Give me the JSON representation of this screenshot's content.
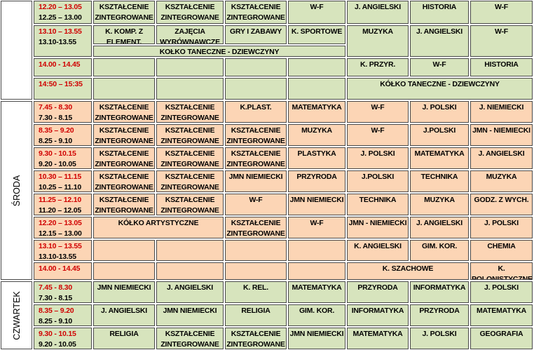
{
  "sections": [
    {
      "rows": [
        {
          "time": {
            "start": "12.20 – 13.05",
            "alt": "12.25 – 13.00"
          },
          "cells": [
            "KSZTAŁCENIE ZINTEGROWANE",
            "KSZTAŁCENIE ZINTEGROWANE",
            "KSZTAŁCENIE ZINTEGROWANE",
            "W-F",
            "J. ANGIELSKI",
            "HISTORIA",
            "W-F"
          ]
        },
        {
          "time": {
            "start": "13.10 – 13.55",
            "alt": "13.10-13.55"
          },
          "cells": [
            "K. KOMP. Z ELEMENT. PROG.",
            "ZAJĘCIA WYRÓWNAWCZE",
            "GRY I ZABAWY",
            "K. SPORTOWE",
            "MUZYKA",
            "J. ANGIELSKI",
            "W-F",
            "KOŁKO TANECZNE - DZIEWCZYNY"
          ]
        },
        {
          "time": {
            "start": "14.00 - 14.45"
          },
          "cells": [
            "K. PRZYR.",
            "W-F",
            "HISTORIA"
          ]
        },
        {
          "time": {
            "start": "14:50 – 15:35"
          },
          "cells": [
            "KÓŁKO TANECZNE - DZIEWCZYNY"
          ]
        }
      ]
    },
    {
      "day": "ŚRODA",
      "rows": [
        {
          "time": {
            "start": "7.45 - 8.30",
            "alt": "7.30 - 8.15"
          },
          "cells": [
            "KSZTAŁCENIE ZINTEGROWANE",
            "KSZTAŁCENIE ZINTEGROWANE",
            "K.PLAST.",
            "MATEMATYKA",
            "W-F",
            "J. POLSKI",
            "J. NIEMIECKI"
          ]
        },
        {
          "time": {
            "start": "8.35 – 9.20",
            "alt": "8.25 - 9.10"
          },
          "cells": [
            "KSZTAŁCENIE ZINTEGROWANE",
            "KSZTAŁCENIE ZINTEGROWANE",
            "KSZTAŁCENIE ZINTEGROWANE",
            "MUZYKA",
            "W-F",
            "J.POLSKI",
            "JMN - NIEMIECKI"
          ]
        },
        {
          "time": {
            "start": "9.30 - 10.15",
            "alt": "9.20 - 10.05"
          },
          "cells": [
            "KSZTAŁCENIE ZINTEGROWANE",
            "KSZTAŁCENIE ZINTEGROWANE",
            "KSZTAŁCENIE ZINTEGROWANE",
            "PLASTYKA",
            "J. POLSKI",
            "MATEMATYKA",
            "J. ANGIELSKI"
          ]
        },
        {
          "time": {
            "start": "10.30 – 11.15",
            "alt": "10.25 – 11.10"
          },
          "cells": [
            "KSZTAŁCENIE ZINTEGROWANE",
            "KSZTAŁCENIE ZINTEGROWANE",
            "JMN NIEMIECKI",
            "PRZYRODA",
            "J.POLSKI",
            "TECHNIKA",
            "MUZYKA"
          ]
        },
        {
          "time": {
            "start": "11.25 – 12.10",
            "alt": "11.20 – 12.05"
          },
          "cells": [
            "KSZTAŁCENIE ZINTEGROWANE",
            "KSZTAŁCENIE ZINTEGROWANE",
            "W-F",
            "JMN NIEMIECKI",
            "TECHNIKA",
            "MUZYKA",
            "GODZ. Z WYCH."
          ]
        },
        {
          "time": {
            "start": "12.20 – 13.05",
            "alt": "12.15 – 13.00"
          },
          "cells": [
            "KÓŁKO ARTYSTYCZNE",
            "KSZTAŁCENIE ZINTEGROWANE",
            "W-F",
            "JMN - NIEMIECKI",
            "J. ANGIELSKI",
            "J. POLSKI"
          ]
        },
        {
          "time": {
            "start": "13.10 – 13.55",
            "alt": "13.10-13.55"
          },
          "cells": [
            "K. ANGIELSKI",
            "GIM. KOR.",
            "CHEMIA"
          ]
        },
        {
          "time": {
            "start": "14.00 - 14.45"
          },
          "cells": [
            "K. SZACHOWE",
            "K. POLONISTYCZNE"
          ]
        }
      ]
    },
    {
      "day": "CZWARTEK",
      "rows": [
        {
          "time": {
            "start": "7.45 - 8.30",
            "alt": "7.30 - 8.15"
          },
          "cells": [
            "JMN NIEMIECKI",
            "J. ANGIELSKI",
            "K. REL.",
            "MATEMATYKA",
            "PRZYRODA",
            "INFORMATYKA",
            "J. POLSKI"
          ]
        },
        {
          "time": {
            "start": "8.35 – 9.20",
            "alt": "8.25 - 9.10"
          },
          "cells": [
            "J. ANGIELSKI",
            "JMN NIEMIECKI",
            "RELIGIA",
            "GIM. KOR.",
            "INFORMATYKA",
            "PRZYRODA",
            "MATEMATYKA"
          ]
        },
        {
          "time": {
            "start": "9.30 - 10.15",
            "alt": "9.20 - 10.05"
          },
          "cells": [
            "RELIGIA",
            "KSZTAŁCENIE ZINTEGROWANE",
            "KSZTAŁCENIE ZINTEGROWANE",
            "JMN NIEMIECKI",
            "MATEMATYKA",
            "J. POLSKI",
            "GEOGRAFIA"
          ]
        }
      ]
    }
  ]
}
